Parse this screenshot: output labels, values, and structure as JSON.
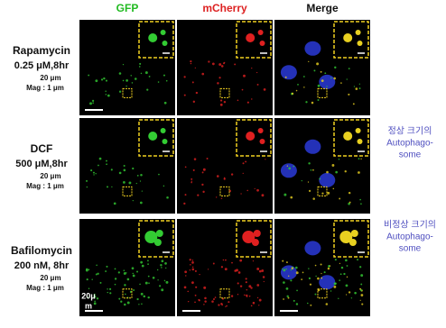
{
  "header": {
    "columns": [
      "GFP",
      "mCherry",
      "Merge"
    ]
  },
  "rows": [
    {
      "label": "Rapamycin",
      "dose": "0.25 μM,8hr",
      "scale": "20 μm",
      "mag": "Mag : 1 μm"
    },
    {
      "label": "DCF",
      "dose": "500 μM,8hr",
      "scale": "20 μm",
      "mag": "Mag : 1 μm"
    },
    {
      "label": "Bafilomycin",
      "dose": "200 nM, 8hr",
      "scale": "20 μm",
      "mag": "Mag : 1 μm"
    }
  ],
  "annotations": [
    {
      "lines": [
        "정상 크기의",
        "Autophago-",
        "some"
      ]
    },
    {
      "lines": [
        "비정상 크기의",
        "Autophago-",
        "some"
      ]
    }
  ],
  "scale_label": {
    "lines": [
      "20μ",
      "m"
    ]
  }
}
